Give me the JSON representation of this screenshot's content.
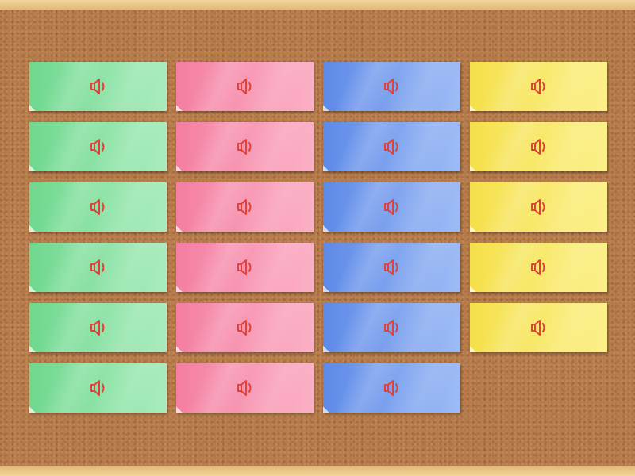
{
  "board": {
    "colors": {
      "green": "#8fe4a8",
      "pink": "#f99ab6",
      "blue": "#7ea3ef",
      "yellow": "#f8ea6a",
      "icon": "#e0413a"
    },
    "cards": [
      {
        "color": "green",
        "icon": "speaker-icon"
      },
      {
        "color": "green",
        "icon": "speaker-icon"
      },
      {
        "color": "green",
        "icon": "speaker-icon"
      },
      {
        "color": "green",
        "icon": "speaker-icon"
      },
      {
        "color": "green",
        "icon": "speaker-icon"
      },
      {
        "color": "green",
        "icon": "speaker-icon"
      },
      {
        "color": "pink",
        "icon": "speaker-icon"
      },
      {
        "color": "pink",
        "icon": "speaker-icon"
      },
      {
        "color": "pink",
        "icon": "speaker-icon"
      },
      {
        "color": "pink",
        "icon": "speaker-icon"
      },
      {
        "color": "pink",
        "icon": "speaker-icon"
      },
      {
        "color": "pink",
        "icon": "speaker-icon"
      },
      {
        "color": "blue",
        "icon": "speaker-icon"
      },
      {
        "color": "blue",
        "icon": "speaker-icon"
      },
      {
        "color": "blue",
        "icon": "speaker-icon"
      },
      {
        "color": "blue",
        "icon": "speaker-icon"
      },
      {
        "color": "blue",
        "icon": "speaker-icon"
      },
      {
        "color": "blue",
        "icon": "speaker-icon"
      },
      {
        "color": "yellow",
        "icon": "speaker-icon"
      },
      {
        "color": "yellow",
        "icon": "speaker-icon"
      },
      {
        "color": "yellow",
        "icon": "speaker-icon"
      },
      {
        "color": "yellow",
        "icon": "speaker-icon"
      },
      {
        "color": "yellow",
        "icon": "speaker-icon"
      }
    ]
  }
}
